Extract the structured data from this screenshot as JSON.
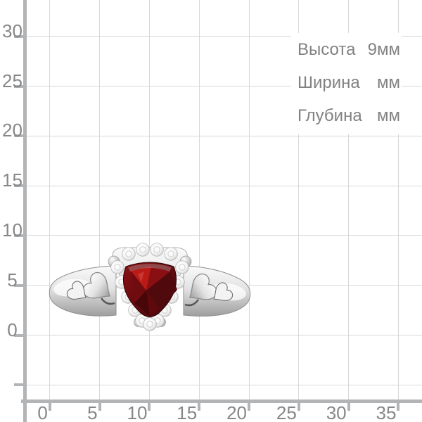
{
  "rulers": {
    "y_axis": {
      "labels": [
        "30",
        "25",
        "20",
        "15",
        "10",
        "5",
        "0"
      ]
    },
    "x_axis": {
      "labels": [
        "0",
        "5",
        "10",
        "15",
        "20",
        "25",
        "30",
        "35"
      ]
    }
  },
  "dimensions_panel": {
    "rows": [
      {
        "label": "Высота",
        "value": "9мм"
      },
      {
        "label": "Ширина",
        "value": "мм"
      },
      {
        "label": "Глубина",
        "value": "мм"
      }
    ]
  },
  "product_image": {
    "kind": "silver-ring-with-garnet-heart-and-diamond-halo",
    "colors": {
      "gemstone_bright": "#b91a17",
      "gemstone_dark": "#43070b",
      "metal_light": "#f5f5f5",
      "metal_dark": "#9e9e9e",
      "grid_line": "#d8d8d8",
      "axis_line": "#b2b4b6",
      "ruler_text": "#878787",
      "panel_text": "#828282"
    }
  }
}
